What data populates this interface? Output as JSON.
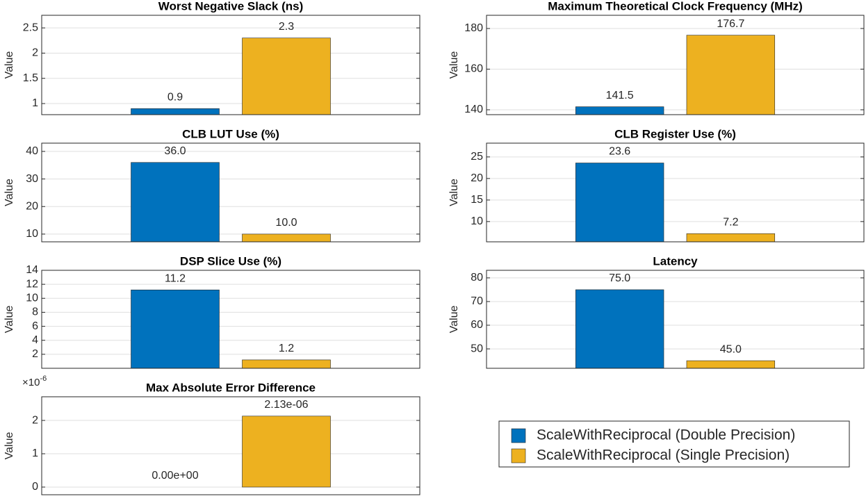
{
  "chart_data": [
    {
      "type": "bar",
      "title": "Worst Negative Slack (ns)",
      "ylabel": "Value",
      "values": [
        0.9,
        2.3
      ],
      "ylim": [
        0.78,
        2.75
      ],
      "yticks": [
        1,
        1.5,
        2,
        2.5
      ],
      "grid": true
    },
    {
      "type": "bar",
      "title": "Maximum Theoretical Clock Frequency (MHz)",
      "ylabel": "Value",
      "values": [
        141.5,
        176.7
      ],
      "ylim": [
        137.6,
        186.5
      ],
      "yticks": [
        140,
        160,
        180
      ],
      "grid": true
    },
    {
      "type": "bar",
      "title": "CLB LUT Use (%)",
      "ylabel": "Value",
      "values": [
        36,
        10
      ],
      "value_labels": [
        "36.0",
        "10.0"
      ],
      "ylim": [
        7.2,
        43
      ],
      "yticks": [
        10,
        20,
        30,
        40
      ],
      "grid": true
    },
    {
      "type": "bar",
      "title": "CLB Register Use (%)",
      "ylabel": "Value",
      "values": [
        23.6,
        7.2
      ],
      "ylim": [
        5.3,
        28.2
      ],
      "yticks": [
        10,
        15,
        20,
        25
      ],
      "grid": true
    },
    {
      "type": "bar",
      "title": "DSP Slice Use (%)",
      "ylabel": "Value",
      "values": [
        11.2,
        1.2
      ],
      "ylim": [
        0,
        14
      ],
      "yticks": [
        2,
        4,
        6,
        8,
        10,
        12,
        14
      ],
      "grid": true
    },
    {
      "type": "bar",
      "title": "Latency",
      "ylabel": "Value",
      "values": [
        75,
        45
      ],
      "value_labels": [
        "75.0",
        "45.0"
      ],
      "ylim": [
        41.8,
        83.2
      ],
      "yticks": [
        50,
        60,
        70,
        80
      ],
      "grid": true
    },
    {
      "type": "bar",
      "title": "Max Absolute Error Difference",
      "ylabel": "Value",
      "values": [
        0,
        2.13e-06
      ],
      "value_labels": [
        "0.00e+00",
        "2.13e-06"
      ],
      "ylim": [
        -2.3e-07,
        2.71e-06
      ],
      "yticks": [
        {
          "value": 0,
          "label": "0"
        },
        {
          "value": 1e-06,
          "label": "1"
        },
        {
          "value": 2e-06,
          "label": "2"
        }
      ],
      "exponent_label": {
        "base": "×10",
        "power": "-6"
      },
      "grid": true
    }
  ],
  "legend": {
    "series": [
      {
        "name": "ScaleWithReciprocal (Double Precision)",
        "color": "#0072bd"
      },
      {
        "name": "ScaleWithReciprocal (Single Precision)",
        "color": "#edb120"
      }
    ]
  }
}
